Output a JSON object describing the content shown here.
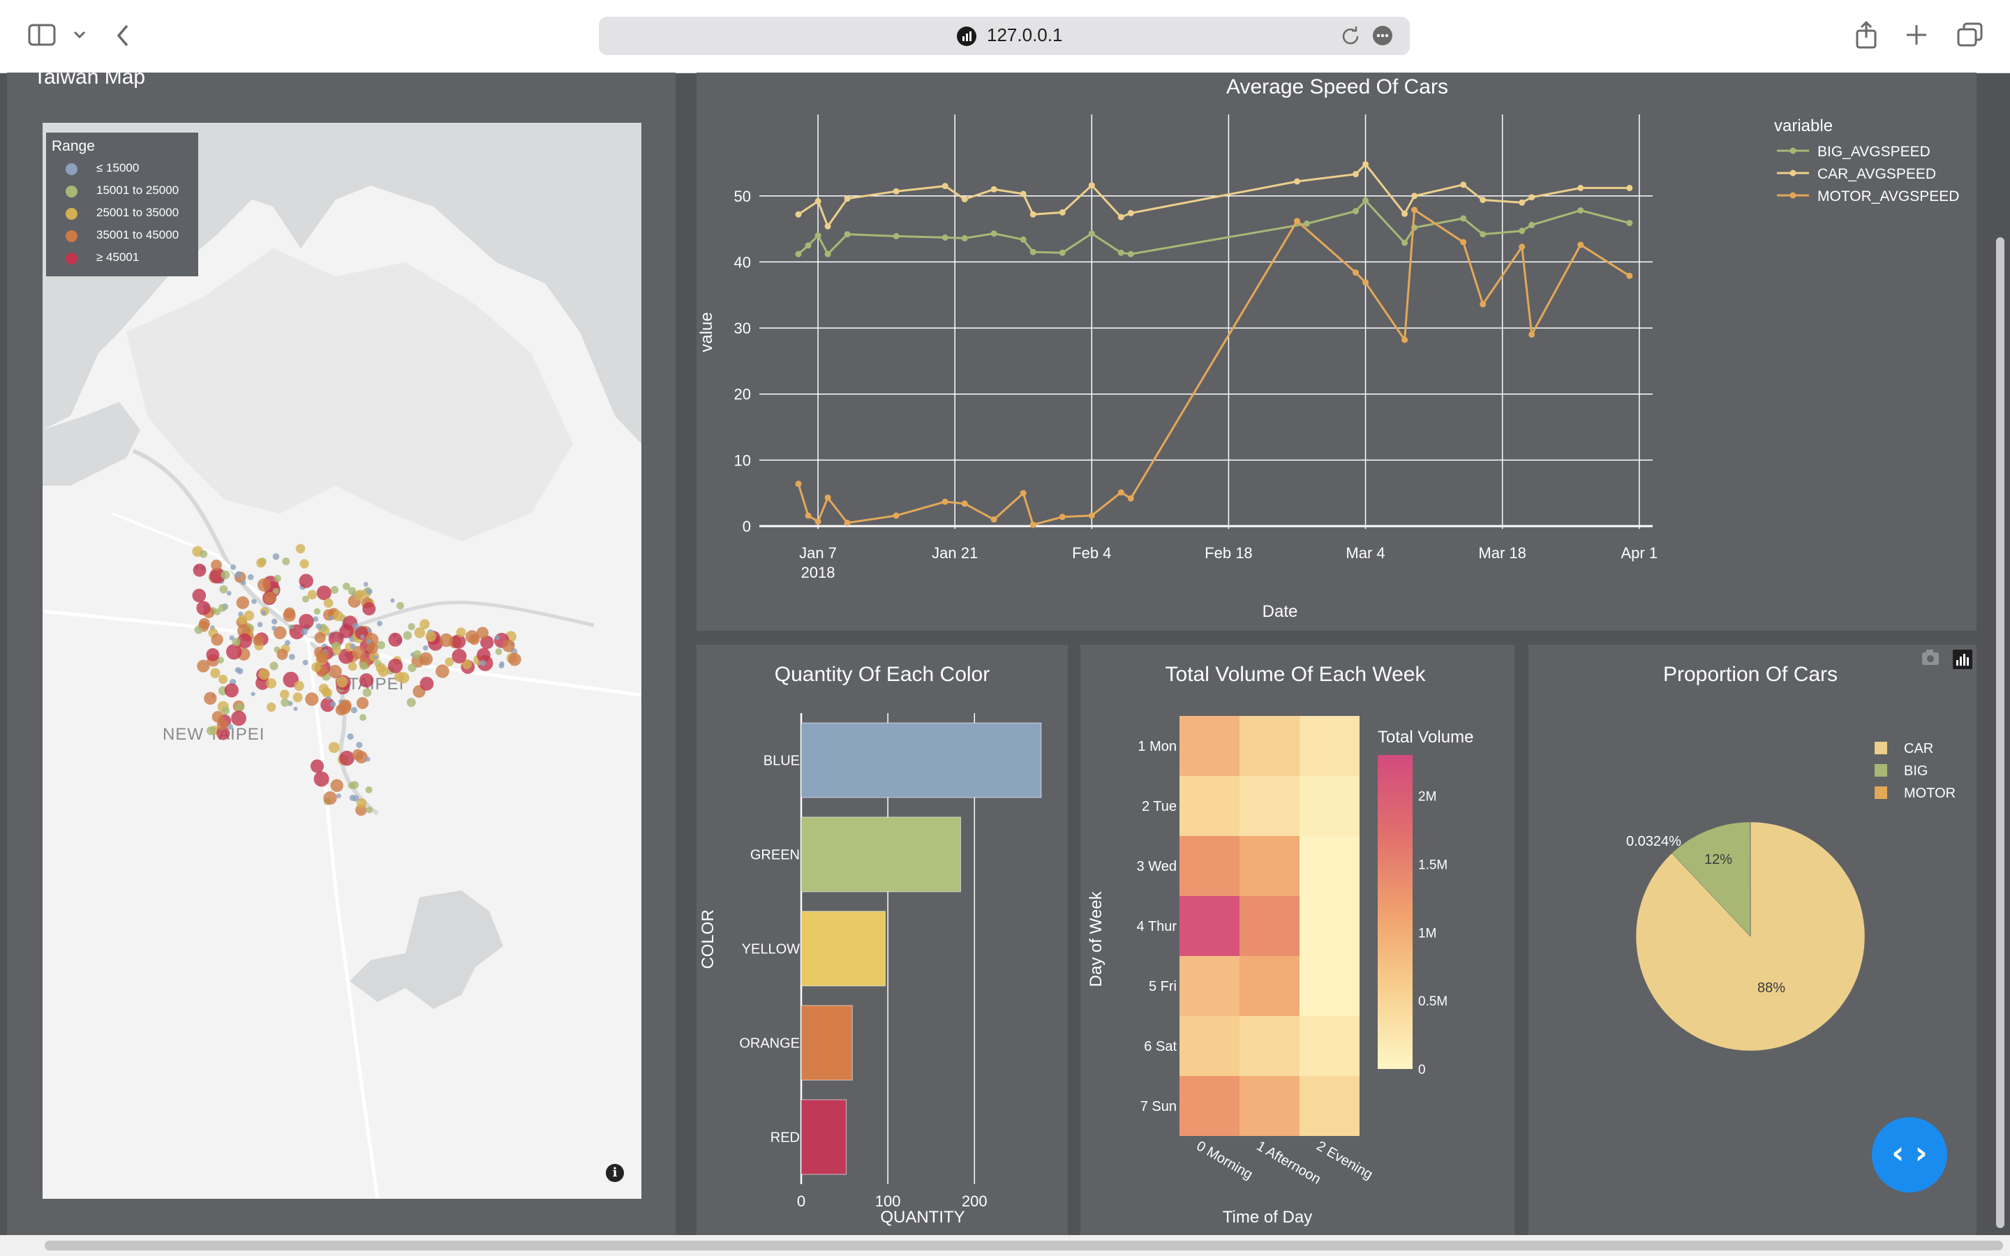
{
  "browser": {
    "url": "127.0.0.1"
  },
  "map_panel": {
    "title": "Taiwan Map",
    "legend_title": "Range",
    "legend": [
      {
        "label": "≤ 15000",
        "color": "#8da1bd"
      },
      {
        "label": "15001 to 25000",
        "color": "#a8b874"
      },
      {
        "label": "25001 to 35000",
        "color": "#d3b054"
      },
      {
        "label": "35001 to 45000",
        "color": "#cc7a46"
      },
      {
        "label": "≥ 45001",
        "color": "#c0364f"
      }
    ],
    "place_labels": [
      "TAIPEI",
      "NEW TAIPEI"
    ]
  },
  "line_chart": {
    "chart_data": {
      "type": "line",
      "title": "Average Speed Of Cars",
      "xlabel": "Date",
      "ylabel": "value",
      "legend_title": "variable",
      "x_ticks": [
        "Jan 7",
        "Jan 21",
        "Feb 4",
        "Feb 18",
        "Mar 4",
        "Mar 18",
        "Apr 1"
      ],
      "x_tick_year": "2018",
      "y_ticks": [
        "0",
        "10",
        "20",
        "30",
        "40",
        "50"
      ],
      "ylim": [
        0,
        56
      ],
      "xlim": [
        "2018-01-01",
        "2018-04-01"
      ],
      "series": [
        {
          "name": "BIG_AVGSPEED",
          "color": "#a8b874",
          "points": [
            [
              "2018-01-05",
              41.2
            ],
            [
              "2018-01-06",
              42.5
            ],
            [
              "2018-01-07",
              44.0
            ],
            [
              "2018-01-08",
              41.2
            ],
            [
              "2018-01-10",
              44.2
            ],
            [
              "2018-01-15",
              43.9
            ],
            [
              "2018-01-20",
              43.7
            ],
            [
              "2018-01-22",
              43.6
            ],
            [
              "2018-01-25",
              44.3
            ],
            [
              "2018-01-28",
              43.4
            ],
            [
              "2018-01-29",
              41.5
            ],
            [
              "2018-02-01",
              41.4
            ],
            [
              "2018-02-04",
              44.3
            ],
            [
              "2018-02-07",
              41.4
            ],
            [
              "2018-02-08",
              41.2
            ],
            [
              "2018-02-26",
              45.8
            ],
            [
              "2018-03-03",
              47.7
            ],
            [
              "2018-03-04",
              49.3
            ],
            [
              "2018-03-08",
              42.9
            ],
            [
              "2018-03-09",
              45.2
            ],
            [
              "2018-03-14",
              46.6
            ],
            [
              "2018-03-16",
              44.2
            ],
            [
              "2018-03-20",
              44.7
            ],
            [
              "2018-03-21",
              45.6
            ],
            [
              "2018-03-26",
              47.8
            ],
            [
              "2018-03-31",
              45.9
            ]
          ]
        },
        {
          "name": "CAR_AVGSPEED",
          "color": "#eccf8a",
          "points": [
            [
              "2018-01-05",
              47.2
            ],
            [
              "2018-01-07",
              49.2
            ],
            [
              "2018-01-08",
              45.4
            ],
            [
              "2018-01-10",
              49.6
            ],
            [
              "2018-01-15",
              50.7
            ],
            [
              "2018-01-20",
              51.5
            ],
            [
              "2018-01-22",
              49.5
            ],
            [
              "2018-01-25",
              51.0
            ],
            [
              "2018-01-28",
              50.3
            ],
            [
              "2018-01-29",
              47.2
            ],
            [
              "2018-02-01",
              47.5
            ],
            [
              "2018-02-04",
              51.6
            ],
            [
              "2018-02-07",
              46.8
            ],
            [
              "2018-02-08",
              47.4
            ],
            [
              "2018-02-25",
              52.2
            ],
            [
              "2018-03-03",
              53.3
            ],
            [
              "2018-03-04",
              54.8
            ],
            [
              "2018-03-08",
              47.3
            ],
            [
              "2018-03-09",
              50.0
            ],
            [
              "2018-03-14",
              51.7
            ],
            [
              "2018-03-16",
              49.4
            ],
            [
              "2018-03-20",
              49.0
            ],
            [
              "2018-03-21",
              49.8
            ],
            [
              "2018-03-26",
              51.2
            ],
            [
              "2018-03-31",
              51.2
            ]
          ]
        },
        {
          "name": "MOTOR_AVGSPEED",
          "color": "#e3a857",
          "points": [
            [
              "2018-01-05",
              6.4
            ],
            [
              "2018-01-06",
              1.6
            ],
            [
              "2018-01-07",
              0.7
            ],
            [
              "2018-01-08",
              4.3
            ],
            [
              "2018-01-10",
              0.5
            ],
            [
              "2018-01-15",
              1.6
            ],
            [
              "2018-01-20",
              3.7
            ],
            [
              "2018-01-22",
              3.4
            ],
            [
              "2018-01-25",
              1.0
            ],
            [
              "2018-01-28",
              5.0
            ],
            [
              "2018-01-29",
              0.2
            ],
            [
              "2018-02-01",
              1.4
            ],
            [
              "2018-02-04",
              1.6
            ],
            [
              "2018-02-07",
              5.1
            ],
            [
              "2018-02-08",
              4.2
            ],
            [
              "2018-02-25",
              46.2
            ],
            [
              "2018-03-03",
              38.4
            ],
            [
              "2018-03-04",
              36.9
            ],
            [
              "2018-03-08",
              28.2
            ],
            [
              "2018-03-09",
              47.9
            ],
            [
              "2018-03-14",
              43.0
            ],
            [
              "2018-03-16",
              33.6
            ],
            [
              "2018-03-20",
              42.3
            ],
            [
              "2018-03-21",
              29.0
            ],
            [
              "2018-03-26",
              42.6
            ],
            [
              "2018-03-31",
              37.9
            ]
          ]
        }
      ]
    }
  },
  "bar_chart": {
    "chart_data": {
      "type": "bar",
      "orientation": "horizontal",
      "title": "Quantity Of Each Color",
      "xlabel": "QUANTITY",
      "ylabel": "COLOR",
      "categories": [
        "BLUE",
        "GREEN",
        "YELLOW",
        "ORANGE",
        "RED"
      ],
      "values": [
        277,
        184,
        97,
        59,
        52
      ],
      "colors": [
        "#8da4bf",
        "#b0c07d",
        "#e8c964",
        "#d67e48",
        "#c03a58"
      ],
      "x_ticks": [
        "0",
        "100",
        "200"
      ],
      "xlim": [
        0,
        290
      ]
    }
  },
  "heatmap": {
    "chart_data": {
      "type": "heatmap",
      "title": "Total Volume Of Each Week",
      "xlabel": "Time of Day",
      "ylabel": "Day of Week",
      "x": [
        "0 Morning",
        "1 Afternoon",
        "2 Evening"
      ],
      "y": [
        "1 Mon",
        "2 Tue",
        "3 Wed",
        "4 Thur",
        "5 Fri",
        "6 Sat",
        "7 Sun"
      ],
      "z": [
        [
          900000,
          550000,
          280000
        ],
        [
          470000,
          330000,
          130000
        ],
        [
          1250000,
          1000000,
          40000
        ],
        [
          2150000,
          1350000,
          30000
        ],
        [
          800000,
          1000000,
          40000
        ],
        [
          600000,
          450000,
          230000
        ],
        [
          1250000,
          950000,
          450000
        ]
      ],
      "colorbar_title": "Total Volume",
      "colorbar_ticks": [
        "0",
        "0.5M",
        "1M",
        "1.5M",
        "2M"
      ],
      "zlim": [
        0,
        2300000
      ],
      "colorscale": [
        "#fff6c4",
        "#f7d090",
        "#f0a06e",
        "#e06f6d",
        "#d24b7e"
      ]
    }
  },
  "pie_chart": {
    "chart_data": {
      "type": "pie",
      "title": "Proportion Of Cars",
      "labels": [
        "CAR",
        "BIG",
        "MOTOR"
      ],
      "values": [
        88,
        12,
        0.0324
      ],
      "slice_labels": [
        "88%",
        "12%",
        "0.0324%"
      ],
      "colors": [
        "#eccf8a",
        "#a8b874",
        "#e3a857"
      ]
    }
  }
}
